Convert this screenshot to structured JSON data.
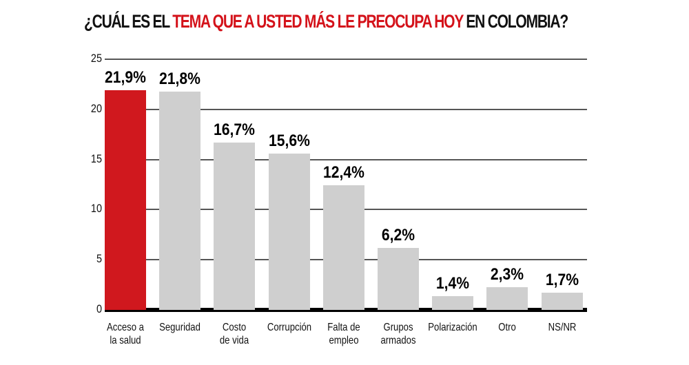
{
  "title": {
    "part1": "¿CUÁL ES EL ",
    "part2": "TEMA QUE A USTED MÁS LE PREOCUPA HOY",
    "part3": " EN COLOMBIA?"
  },
  "colors": {
    "highlight": "#d0181e",
    "bar": "#cfcfcf",
    "grid": "#555555",
    "axis": "#000000"
  },
  "chart_data": {
    "type": "bar",
    "title": "¿Cuál es el tema que a usted más le preocupa hoy en Colombia?",
    "xlabel": "",
    "ylabel": "",
    "ylim": [
      0,
      25
    ],
    "yticks": [
      0,
      5,
      10,
      15,
      20,
      25
    ],
    "grid": true,
    "legend": null,
    "categories": [
      "Acceso a la salud",
      "Seguridad",
      "Costo de vida",
      "Corrupción",
      "Falta de empleo",
      "Grupos armados",
      "Polarización",
      "Otro",
      "NS/NR"
    ],
    "values": [
      21.9,
      21.8,
      16.7,
      15.6,
      12.4,
      6.2,
      1.4,
      2.3,
      1.7
    ],
    "value_labels": [
      "21,9%",
      "21,8%",
      "16,7%",
      "15,6%",
      "12,4%",
      "6,2%",
      "1,4%",
      "2,3%",
      "1,7%"
    ],
    "category_lines": [
      [
        "Acceso a",
        "la salud"
      ],
      [
        "Seguridad"
      ],
      [
        "Costo",
        "de vida"
      ],
      [
        "Corrupción"
      ],
      [
        "Falta de",
        "empleo"
      ],
      [
        "Grupos",
        "armados"
      ],
      [
        "Polarización"
      ],
      [
        "Otro"
      ],
      [
        "NS/NR"
      ]
    ],
    "highlight_index": 0
  }
}
